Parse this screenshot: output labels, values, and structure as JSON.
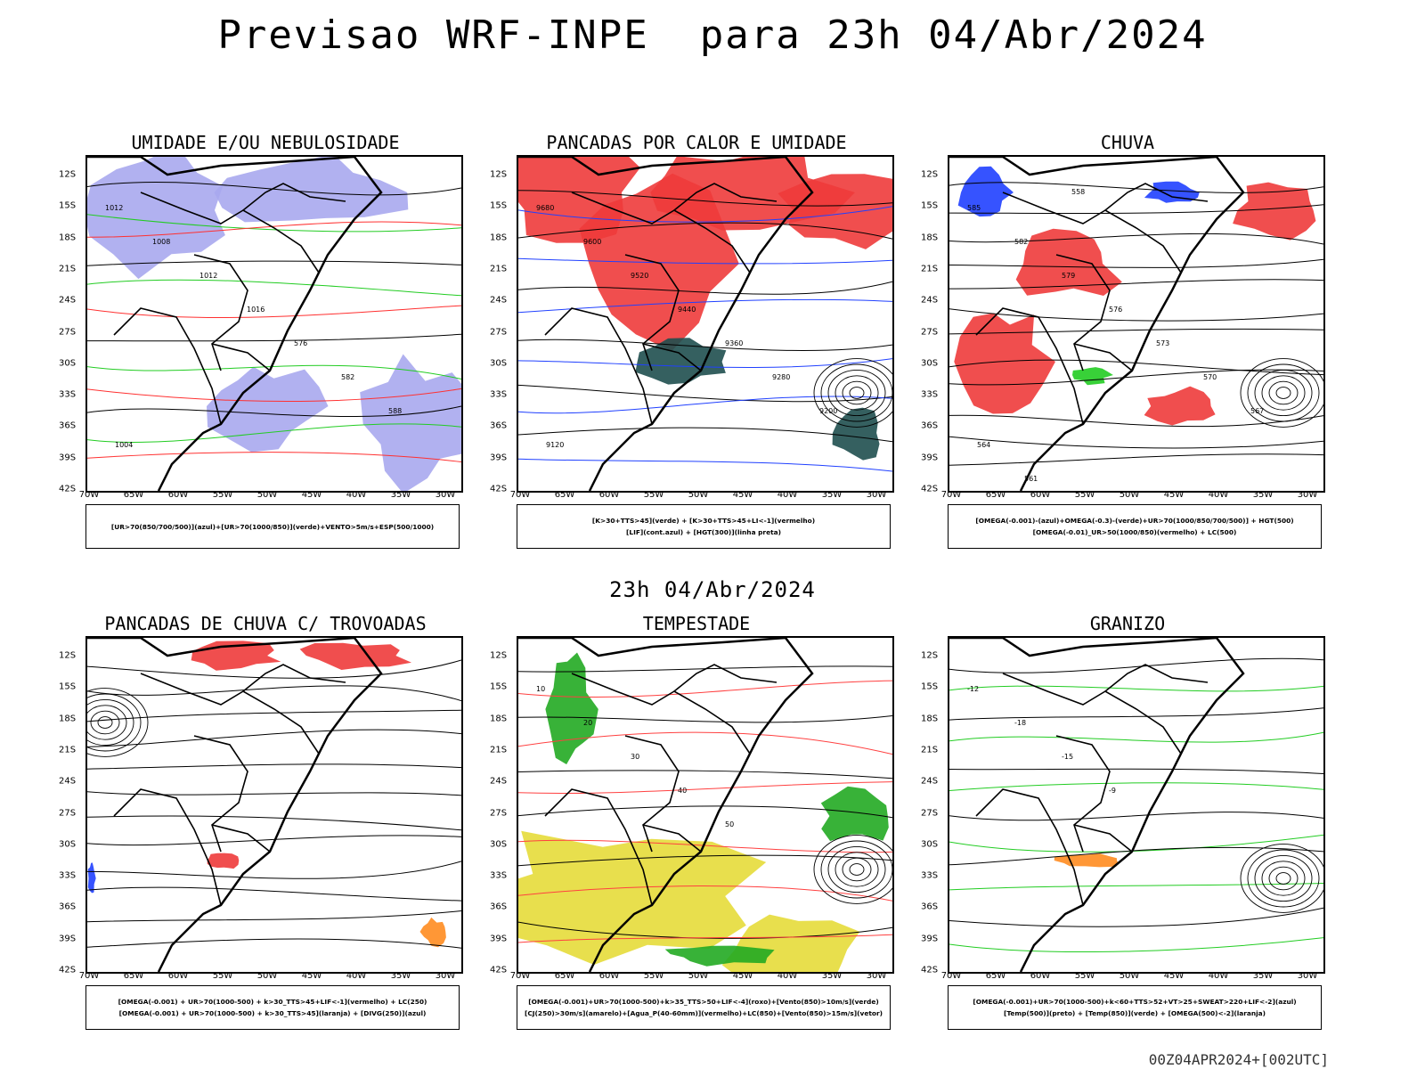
{
  "title": "Previsao WRF-INPE  para 23h 04/Abr/2024",
  "subtitle": "23h 04/Abr/2024",
  "footer": "00Z04APR2024+[002UTC]",
  "axes": {
    "lat_ticks": [
      "12S",
      "15S",
      "18S",
      "21S",
      "24S",
      "27S",
      "30S",
      "33S",
      "36S",
      "39S",
      "42S"
    ],
    "lon_ticks": [
      "70W",
      "65W",
      "60W",
      "55W",
      "50W",
      "45W",
      "40W",
      "35W",
      "30W"
    ]
  },
  "panels": [
    {
      "title": "UMIDADE E/OU NEBULOSIDADE",
      "legend": [
        "[UR>70(850/700/500)](azul)+[UR>70(1000/850)](verde)+VENTO>5m/s+ESP(500/1000)"
      ],
      "contour_labels": [
        "1012",
        "1008",
        "1012",
        "1016",
        "576",
        "582",
        "588",
        "1004"
      ],
      "colors": {
        "fill": "#a8a8ee",
        "line_a": "#22cc22",
        "line_b": "#ff3030",
        "line_c": "#000000"
      }
    },
    {
      "title": "PANCADAS POR CALOR E UMIDADE",
      "legend": [
        "[K>30+TTS>45](verde) + [K>30+TTS>45+LI<-1](vermelho)",
        "[LIF](cont.azul) + [HGT(300)](linha preta)"
      ],
      "contour_labels": [
        "9680",
        "9600",
        "9520",
        "9440",
        "9360",
        "9280",
        "9200",
        "9120"
      ],
      "colors": {
        "fill": "#ee3b3b",
        "fill2": "#1f4f4f",
        "line_a": "#2040ff",
        "line_c": "#000000"
      }
    },
    {
      "title": "CHUVA",
      "legend": [
        "[OMEGA(-0.001)-(azul)+OMEGA(-0.3)-(verde)+UR>70(1000/850/700/500)] + HGT(500)",
        "[OMEGA(-0.01)_UR>50(1000/850)(vermelho) + LC(500)"
      ],
      "contour_labels": [
        "585",
        "582",
        "579",
        "576",
        "573",
        "570",
        "567",
        "564",
        "561",
        "558"
      ],
      "colors": {
        "fill": "#ee3b3b",
        "fill2": "#2040ff",
        "fill3": "#22cc22",
        "line_c": "#000000"
      }
    },
    {
      "title": "PANCADAS DE CHUVA C/ TROVOADAS",
      "legend": [
        "[OMEGA(-0.001) + UR>70(1000-500) + k>30_TTS>45+LIF<-1](vermelho) + LC(250)",
        "[OMEGA(-0.001) + UR>70(1000-500) + k>30_TTS>45](laranja) + [DIVG(250)](azul)"
      ],
      "contour_labels": [],
      "colors": {
        "fill": "#ee3b3b",
        "fill2": "#ff8c20",
        "fill3": "#2040ff",
        "line_c": "#000000"
      }
    },
    {
      "title": "TEMPESTADE",
      "legend": [
        "[OMEGA(-0.001)+UR>70(1000-500)+k>35_TTS>50+LIF<-4](roxo)+[Vento(850)>10m/s](verde)",
        "[CJ(250)>30m/s](amarelo)+[Agua_P(40-60mm)](vermelho)+LC(850)+[Vento(850)>15m/s](vetor)"
      ],
      "contour_labels": [
        "10",
        "20",
        "30",
        "40",
        "50"
      ],
      "colors": {
        "fill": "#e6dc3a",
        "fill2": "#22aa22",
        "line_b": "#ff4040",
        "line_c": "#000000"
      }
    },
    {
      "title": "GRANIZO",
      "legend": [
        "[OMEGA(-0.001)+UR>70(1000-500)+k<60+TTS>52+VT>25+SWEAT>220+LIF<-2](azul)",
        "[Temp(500)](preto) + [Temp(850)](verde) + [OMEGA(500)<-2](laranja)"
      ],
      "contour_labels": [
        "-12",
        "-18",
        "-15",
        "-9"
      ],
      "colors": {
        "fill": "#ff8c20",
        "line_a": "#22cc22",
        "line_c": "#000000"
      }
    }
  ]
}
